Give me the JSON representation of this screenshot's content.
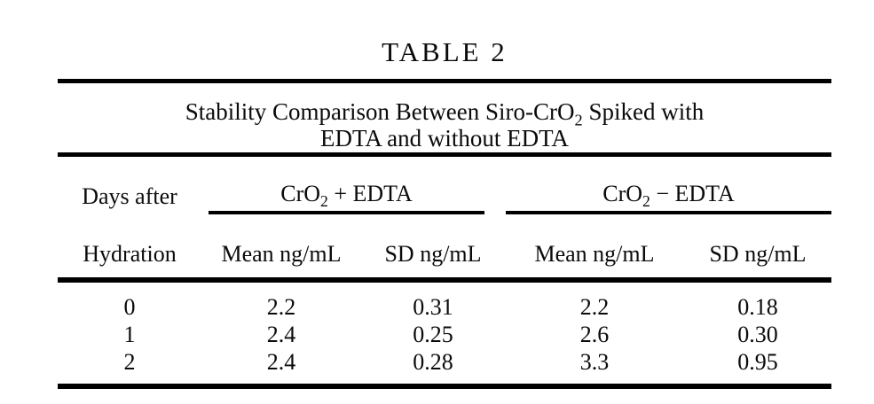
{
  "table": {
    "title": "TABLE 2",
    "subtitle": {
      "line1_prefix": "Stability Comparison Between Siro-CrO",
      "line1_sub": "2",
      "line1_suffix": " Spiked with",
      "line2": "EDTA and without EDTA"
    },
    "row_header": {
      "line1": "Days after",
      "line2": "Hydration"
    },
    "col_groups": [
      {
        "prefix": "CrO",
        "sub": "2",
        "suffix": " + EDTA"
      },
      {
        "prefix": "CrO",
        "sub": "2",
        "suffix": " − EDTA"
      }
    ],
    "sub_headers": [
      "Mean ng/mL",
      "SD ng/mL",
      "Mean ng/mL",
      "SD ng/mL"
    ],
    "rows": [
      {
        "day": "0",
        "with_edta_mean": "2.2",
        "with_edta_sd": "0.31",
        "without_edta_mean": "2.2",
        "without_edta_sd": "0.18"
      },
      {
        "day": "1",
        "with_edta_mean": "2.4",
        "with_edta_sd": "0.25",
        "without_edta_mean": "2.6",
        "without_edta_sd": "0.30"
      },
      {
        "day": "2",
        "with_edta_mean": "2.4",
        "with_edta_sd": "0.28",
        "without_edta_mean": "3.3",
        "without_edta_sd": "0.95"
      }
    ],
    "colors": {
      "ink": "#0b0b0b",
      "rule": "#000000",
      "background": "#ffffff"
    }
  }
}
